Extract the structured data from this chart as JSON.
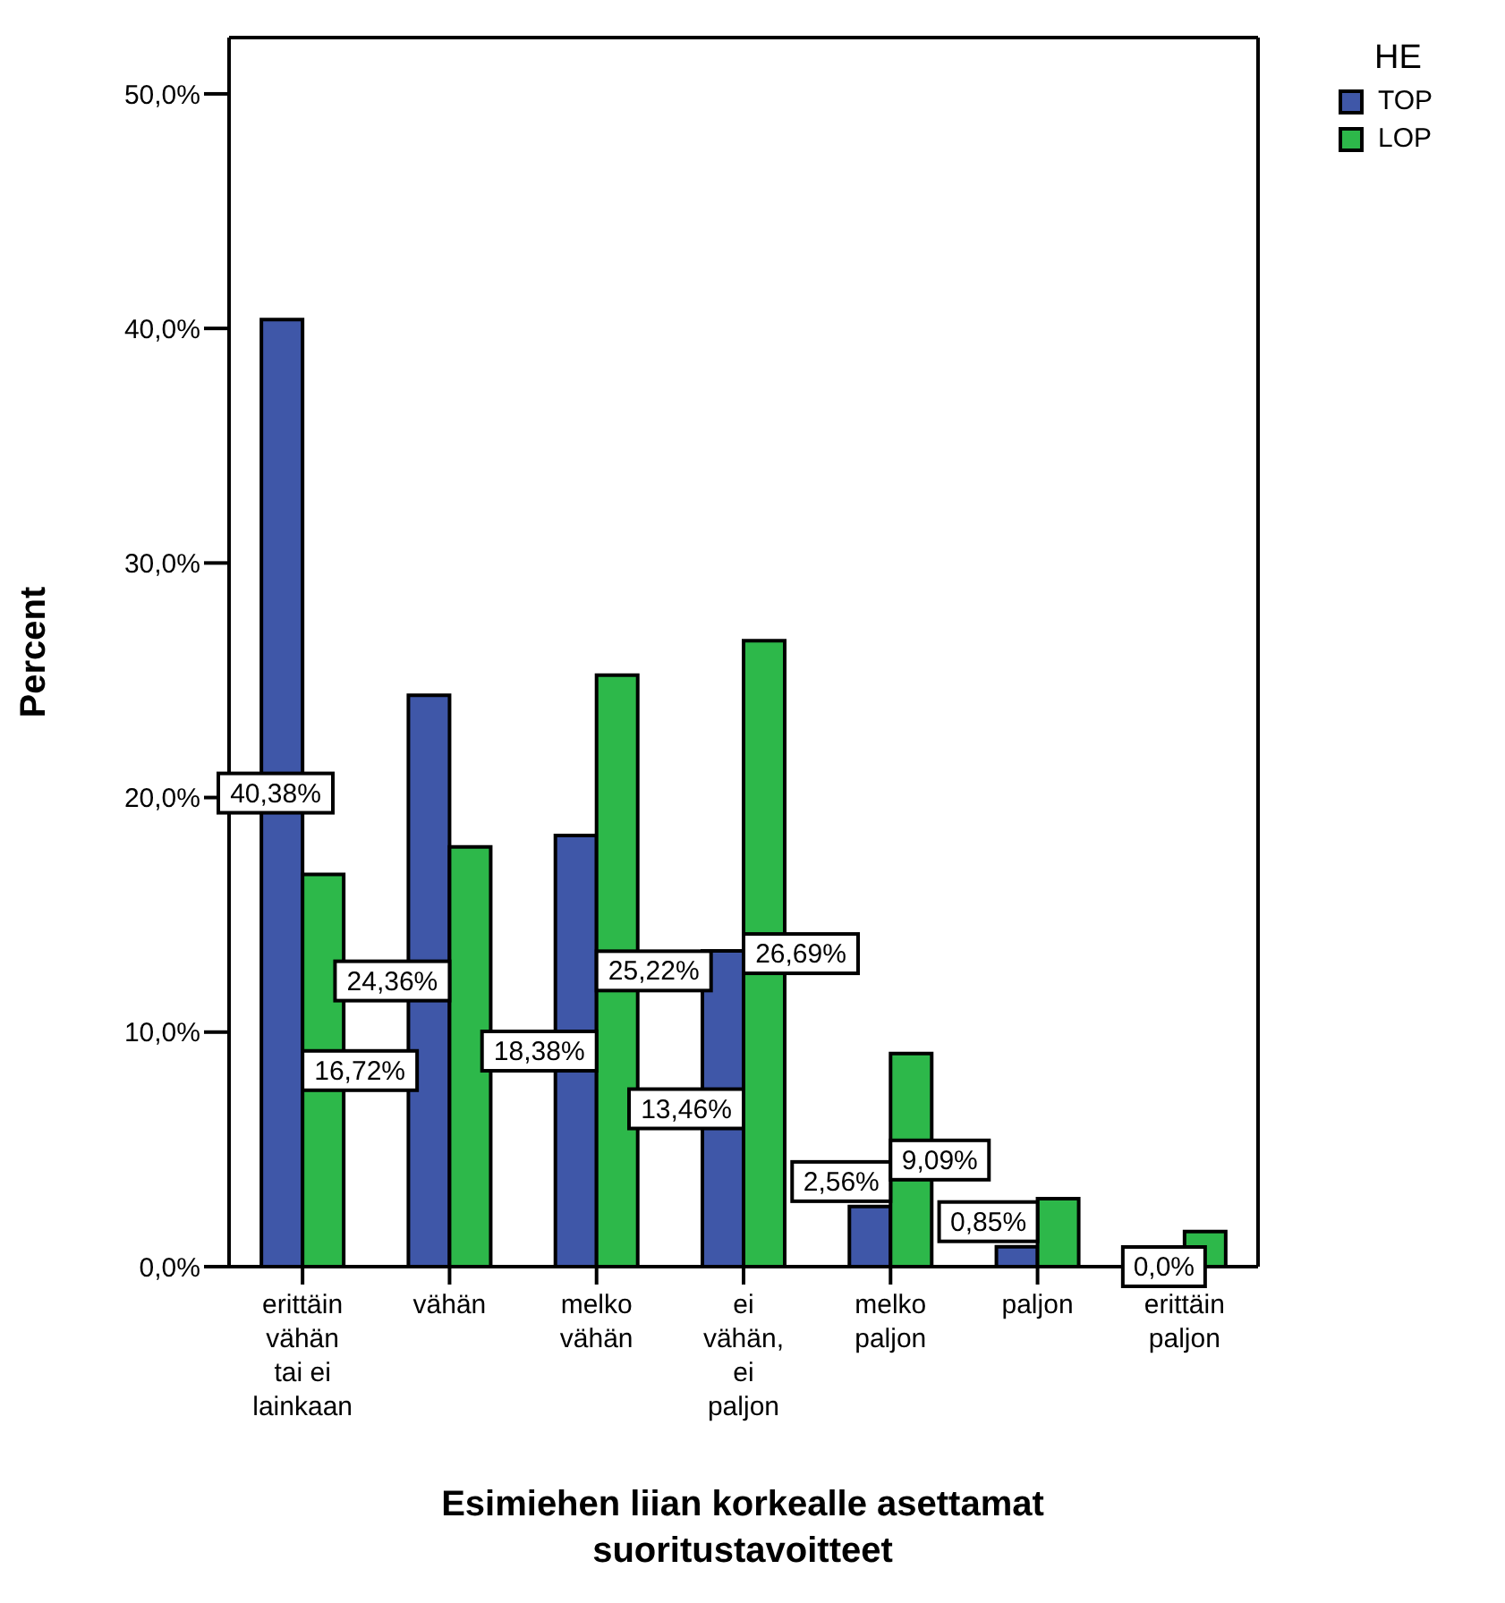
{
  "chart_data": {
    "type": "bar",
    "xlabel": "Esimiehen liian korkealle asettamat suoritustavoitteet",
    "ylabel": "Percent",
    "legend_title": "HE",
    "legend": "top right",
    "categories": [
      "erittäin vähän tai ei lainkaan",
      "vähän",
      "melko vähän",
      "ei vähän, ei paljon",
      "melko paljon",
      "paljon",
      "erittäin paljon"
    ],
    "series": [
      {
        "name": "TOP",
        "color": "#3f57a8",
        "values": [
          40.38,
          24.36,
          18.38,
          13.46,
          2.56,
          0.85,
          0.0
        ],
        "value_labels": [
          "40,38%",
          "24,36%",
          "18,38%",
          "13,46%",
          "2,56%",
          "0,85%",
          "0,0%"
        ]
      },
      {
        "name": "LOP",
        "color": "#2db84a",
        "values": [
          16.72,
          17.9,
          25.22,
          26.69,
          9.09,
          2.9,
          1.5
        ],
        "value_labels": [
          "16,72%",
          null,
          "25,22%",
          "26,69%",
          "9,09%",
          null,
          null
        ]
      }
    ],
    "ylim": [
      0,
      52.4
    ],
    "yticks": [
      {
        "value": 0,
        "label": "0,0%"
      },
      {
        "value": 10,
        "label": "10,0%"
      },
      {
        "value": 20,
        "label": "20,0%"
      },
      {
        "value": 30,
        "label": "30,0%"
      },
      {
        "value": 40,
        "label": "40,0%"
      },
      {
        "value": 50,
        "label": "50,0%"
      }
    ],
    "grid": false
  }
}
